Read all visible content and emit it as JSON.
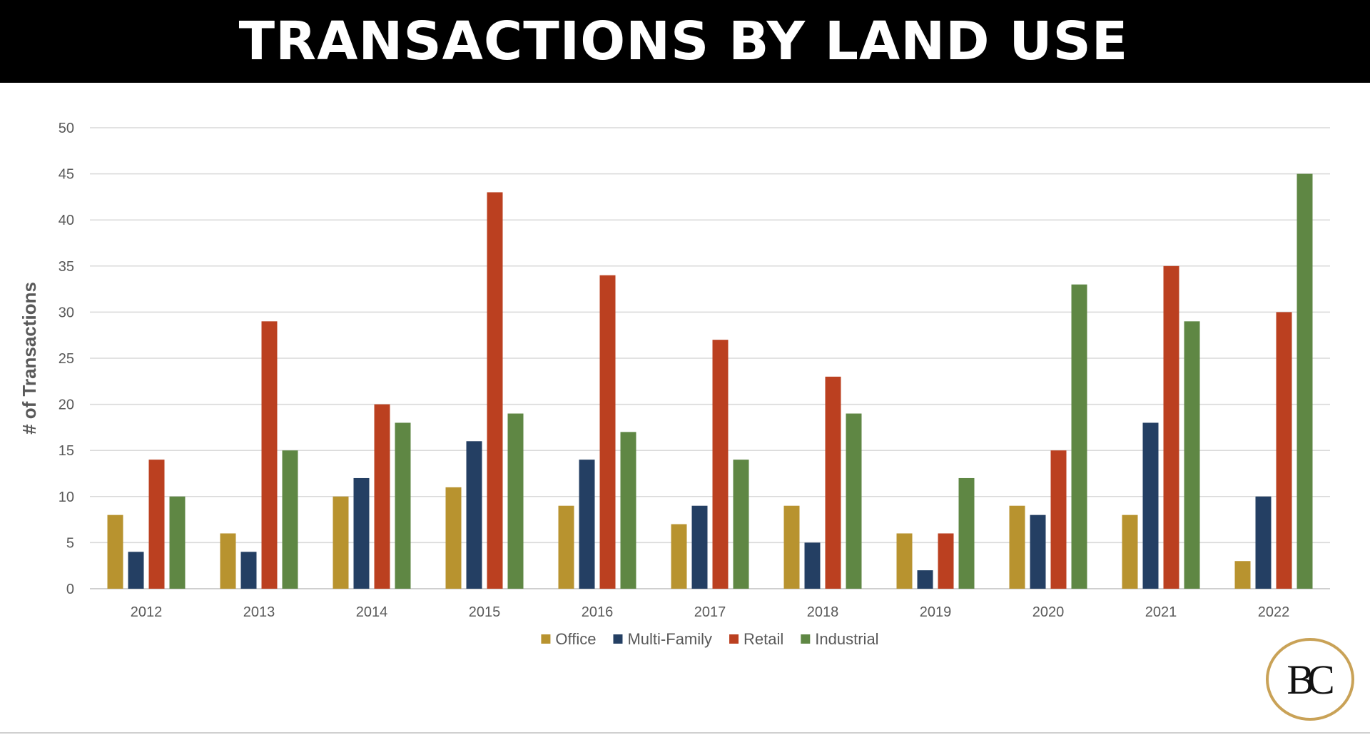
{
  "header": {
    "title": "TRANSACTIONS BY LAND USE"
  },
  "logo": {
    "text": "BC"
  },
  "chart_data": {
    "type": "bar",
    "title": "TRANSACTIONS BY LAND USE",
    "xlabel": "",
    "ylabel": "# of Transactions",
    "ylim": [
      0,
      50
    ],
    "yticks": [
      0,
      5,
      10,
      15,
      20,
      25,
      30,
      35,
      40,
      45,
      50
    ],
    "grid": true,
    "legend_position": "bottom",
    "categories": [
      "2012",
      "2013",
      "2014",
      "2015",
      "2016",
      "2017",
      "2018",
      "2019",
      "2020",
      "2021",
      "2022"
    ],
    "series": [
      {
        "name": "Office",
        "color": "#b8932f",
        "values": [
          8,
          6,
          10,
          11,
          9,
          7,
          9,
          6,
          9,
          8,
          3
        ]
      },
      {
        "name": "Multi-Family",
        "color": "#243f63",
        "values": [
          4,
          4,
          12,
          16,
          14,
          9,
          5,
          2,
          8,
          18,
          10
        ]
      },
      {
        "name": "Retail",
        "color": "#bb4020",
        "values": [
          14,
          29,
          20,
          43,
          34,
          27,
          23,
          6,
          15,
          35,
          30
        ]
      },
      {
        "name": "Industrial",
        "color": "#5f8744",
        "values": [
          10,
          15,
          18,
          19,
          17,
          14,
          19,
          12,
          33,
          29,
          45
        ]
      }
    ]
  }
}
